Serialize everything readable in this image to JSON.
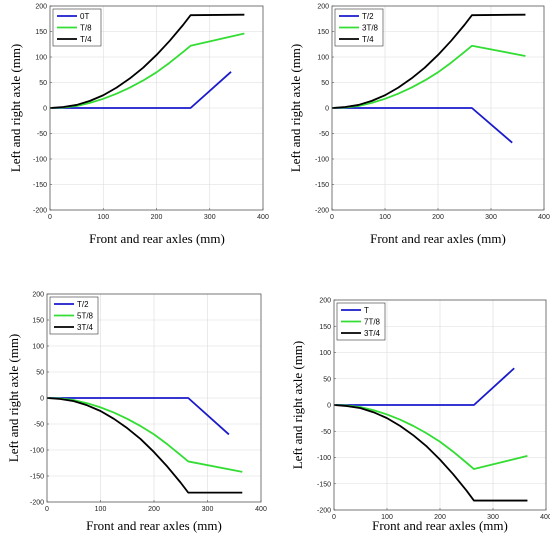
{
  "chart_data": [
    {
      "type": "line",
      "xlabel": "Front and rear axles (mm)",
      "ylabel": "Left and right axle (mm)",
      "xlim": [
        0,
        400
      ],
      "ylim": [
        -200,
        200
      ],
      "xticks": [
        0,
        100,
        200,
        300,
        400
      ],
      "yticks": [
        -200,
        -150,
        -100,
        -50,
        0,
        50,
        100,
        150,
        200
      ],
      "legend": "top-left",
      "series": [
        {
          "name": "0T",
          "color": "#1a1acc",
          "x": [
            0,
            264,
            340
          ],
          "y": [
            0,
            0,
            71
          ]
        },
        {
          "name": "T/8",
          "color": "#33dd33",
          "x": [
            0,
            25,
            50,
            75,
            100,
            125,
            150,
            175,
            200,
            225,
            250,
            264,
            365
          ],
          "y": [
            0,
            1,
            4,
            10,
            18,
            28,
            40,
            54,
            70,
            89,
            110,
            122,
            146
          ]
        },
        {
          "name": "T/4",
          "color": "#000000",
          "x": [
            0,
            25,
            50,
            75,
            100,
            125,
            150,
            175,
            200,
            225,
            250,
            264,
            365
          ],
          "y": [
            0,
            2,
            6,
            14,
            25,
            40,
            58,
            79,
            104,
            132,
            163,
            182,
            183
          ]
        }
      ]
    },
    {
      "type": "line",
      "xlabel": "Front and rear axles (mm)",
      "ylabel": "Left and right axle (mm)",
      "xlim": [
        0,
        400
      ],
      "ylim": [
        -200,
        200
      ],
      "xticks": [
        0,
        100,
        200,
        300,
        400
      ],
      "yticks": [
        -200,
        -150,
        -100,
        -50,
        0,
        50,
        100,
        150,
        200
      ],
      "legend": "top-left",
      "series": [
        {
          "name": "T/2",
          "color": "#1a1acc",
          "x": [
            0,
            264,
            340
          ],
          "y": [
            0,
            0,
            -68
          ]
        },
        {
          "name": "3T/8",
          "color": "#33dd33",
          "x": [
            0,
            25,
            50,
            75,
            100,
            125,
            150,
            175,
            200,
            225,
            250,
            264,
            365
          ],
          "y": [
            0,
            1,
            4,
            10,
            18,
            28,
            40,
            54,
            70,
            89,
            110,
            122,
            102
          ]
        },
        {
          "name": "T/4",
          "color": "#000000",
          "x": [
            0,
            25,
            50,
            75,
            100,
            125,
            150,
            175,
            200,
            225,
            250,
            264,
            365
          ],
          "y": [
            0,
            2,
            6,
            14,
            25,
            40,
            58,
            79,
            104,
            132,
            163,
            182,
            183
          ]
        }
      ]
    },
    {
      "type": "line",
      "xlabel": "Front and rear axles (mm)",
      "ylabel": "Left and right axle (mm)",
      "xlim": [
        0,
        400
      ],
      "ylim": [
        -200,
        200
      ],
      "xticks": [
        0,
        100,
        200,
        300,
        400
      ],
      "yticks": [
        -200,
        -150,
        -100,
        -50,
        0,
        50,
        100,
        150,
        200
      ],
      "legend": "top-left",
      "series": [
        {
          "name": "T/2",
          "color": "#1a1acc",
          "x": [
            0,
            264,
            340
          ],
          "y": [
            0,
            0,
            -70
          ]
        },
        {
          "name": "5T/8",
          "color": "#33dd33",
          "x": [
            0,
            25,
            50,
            75,
            100,
            125,
            150,
            175,
            200,
            225,
            250,
            264,
            365
          ],
          "y": [
            0,
            -1,
            -4,
            -10,
            -18,
            -28,
            -40,
            -54,
            -70,
            -89,
            -110,
            -122,
            -142
          ]
        },
        {
          "name": "3T/4",
          "color": "#000000",
          "x": [
            0,
            25,
            50,
            75,
            100,
            125,
            150,
            175,
            200,
            225,
            250,
            264,
            365
          ],
          "y": [
            0,
            -2,
            -6,
            -14,
            -25,
            -40,
            -58,
            -79,
            -104,
            -132,
            -163,
            -182,
            -182
          ]
        }
      ]
    },
    {
      "type": "line",
      "xlabel": "Front and rear axles (mm)",
      "ylabel": "Left and right axle (mm)",
      "xlim": [
        0,
        400
      ],
      "ylim": [
        -200,
        200
      ],
      "xticks": [
        0,
        100,
        200,
        300,
        400
      ],
      "yticks": [
        -200,
        -150,
        -100,
        -50,
        0,
        50,
        100,
        150,
        200
      ],
      "legend": "top-left",
      "series": [
        {
          "name": "T",
          "color": "#1a1acc",
          "x": [
            0,
            264,
            340
          ],
          "y": [
            0,
            0,
            70
          ]
        },
        {
          "name": "7T/8",
          "color": "#33dd33",
          "x": [
            0,
            25,
            50,
            75,
            100,
            125,
            150,
            175,
            200,
            225,
            250,
            264,
            365
          ],
          "y": [
            0,
            -1,
            -4,
            -10,
            -18,
            -28,
            -40,
            -54,
            -70,
            -89,
            -110,
            -122,
            -97
          ]
        },
        {
          "name": "3T/4",
          "color": "#000000",
          "x": [
            0,
            25,
            50,
            75,
            100,
            125,
            150,
            175,
            200,
            225,
            250,
            264,
            365
          ],
          "y": [
            0,
            -2,
            -6,
            -14,
            -25,
            -40,
            -58,
            -79,
            -104,
            -132,
            -163,
            -182,
            -182
          ]
        }
      ]
    }
  ]
}
